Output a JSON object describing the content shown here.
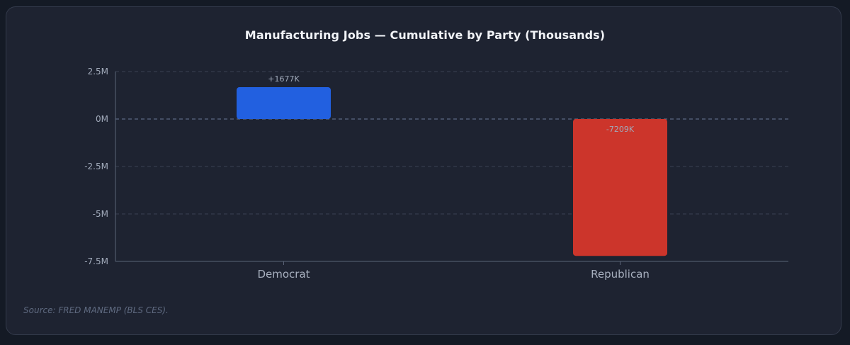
{
  "chart_data": {
    "type": "bar",
    "title": "Manufacturing Jobs — Cumulative by Party (Thousands)",
    "categories": [
      "Democrat",
      "Republican"
    ],
    "values": [
      1677,
      -7209
    ],
    "data_labels": [
      "+1677K",
      "-7209K"
    ],
    "colors": [
      "#2260e0",
      "#cc352b"
    ],
    "ylim": [
      -7500,
      2500
    ],
    "yticks": [
      2500,
      0,
      -2500,
      -5000,
      -7500
    ],
    "ytick_labels": [
      "2.5M",
      "0M",
      "-2.5M",
      "-5M",
      "-7.5M"
    ],
    "xlabel": "",
    "ylabel": "",
    "grid": true,
    "legend": "none"
  },
  "source": "Source: FRED MANEMP (BLS CES)."
}
